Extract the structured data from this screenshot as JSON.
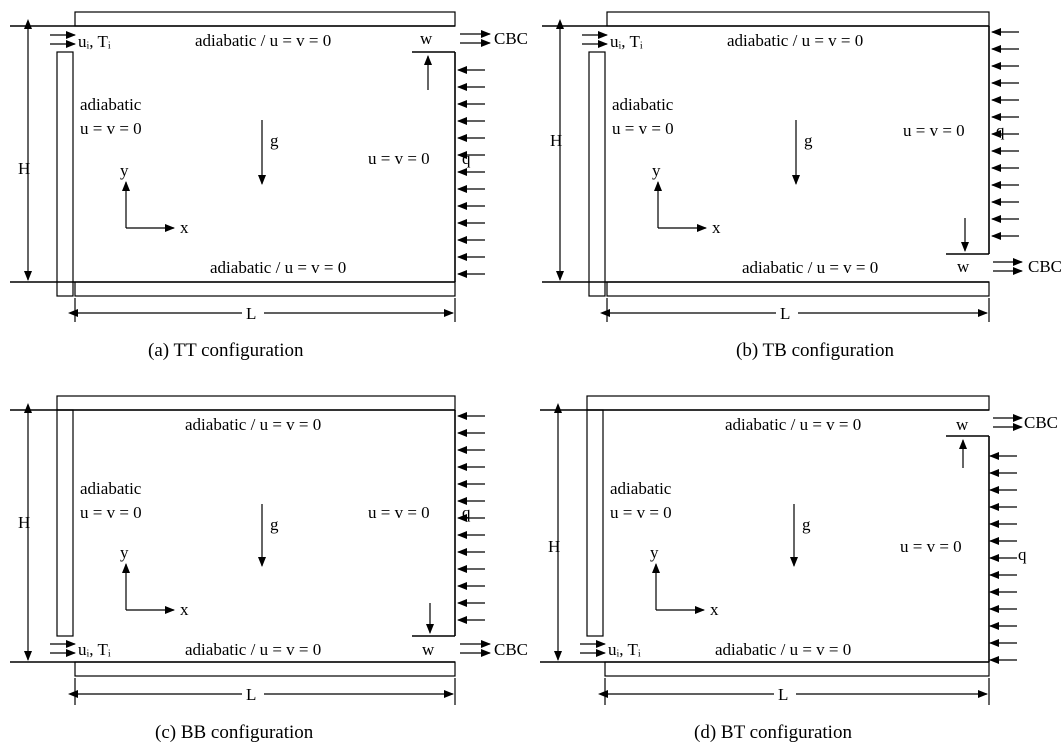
{
  "panels": [
    {
      "id": "a",
      "caption": "(a) TT configuration",
      "top_label": "adiabatic / u = v = 0",
      "bottom_label": "adiabatic / u = v = 0",
      "left_label_1": "adiabatic",
      "left_label_2": "u = v = 0",
      "right_label": "u = v = 0",
      "heat_label": "q",
      "gravity_label": "g",
      "y_label": "y",
      "x_label": "x",
      "height_label": "H",
      "length_label": "L",
      "inlet_label": "uᵢ, Tᵢ",
      "outlet_width_label": "w",
      "outlet_label": "CBC"
    },
    {
      "id": "b",
      "caption": "(b) TB configuration",
      "top_label": "adiabatic / u = v = 0",
      "bottom_label": "adiabatic / u = v = 0",
      "left_label_1": "adiabatic",
      "left_label_2": "u = v = 0",
      "right_label": "u = v = 0",
      "heat_label": "q",
      "gravity_label": "g",
      "y_label": "y",
      "x_label": "x",
      "height_label": "H",
      "length_label": "L",
      "inlet_label": "uᵢ, Tᵢ",
      "outlet_width_label": "w",
      "outlet_label": "CBC"
    },
    {
      "id": "c",
      "caption": "(c) BB configuration",
      "top_label": "adiabatic / u = v = 0",
      "bottom_label": "adiabatic / u = v = 0",
      "left_label_1": "adiabatic",
      "left_label_2": "u = v = 0",
      "right_label": "u = v = 0",
      "heat_label": "q",
      "gravity_label": "g",
      "y_label": "y",
      "x_label": "x",
      "height_label": "H",
      "length_label": "L",
      "inlet_label": "uᵢ, Tᵢ",
      "outlet_width_label": "w",
      "outlet_label": "CBC"
    },
    {
      "id": "d",
      "caption": "(d) BT configuration",
      "top_label": "adiabatic / u = v = 0",
      "bottom_label": "adiabatic / u = v = 0",
      "left_label_1": "adiabatic",
      "left_label_2": "u = v = 0",
      "right_label": "u = v = 0",
      "heat_label": "q",
      "gravity_label": "g",
      "y_label": "y",
      "x_label": "x",
      "height_label": "H",
      "length_label": "L",
      "inlet_label": "uᵢ, Tᵢ",
      "outlet_width_label": "w",
      "outlet_label": "CBC"
    }
  ]
}
